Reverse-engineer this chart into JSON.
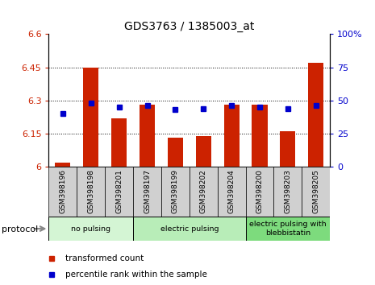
{
  "title": "GDS3763 / 1385003_at",
  "samples": [
    "GSM398196",
    "GSM398198",
    "GSM398201",
    "GSM398197",
    "GSM398199",
    "GSM398202",
    "GSM398204",
    "GSM398200",
    "GSM398203",
    "GSM398205"
  ],
  "red_values": [
    6.02,
    6.45,
    6.22,
    6.28,
    6.13,
    6.14,
    6.28,
    6.28,
    6.16,
    6.47
  ],
  "blue_values": [
    40,
    48,
    45,
    46,
    43,
    44,
    46,
    45,
    44,
    46
  ],
  "ylim_left": [
    6.0,
    6.6
  ],
  "ylim_right": [
    0,
    100
  ],
  "yticks_left": [
    6.0,
    6.15,
    6.3,
    6.45,
    6.6
  ],
  "yticks_right": [
    0,
    25,
    50,
    75,
    100
  ],
  "ytick_labels_left": [
    "6",
    "6.15",
    "6.3",
    "6.45",
    "6.6"
  ],
  "ytick_labels_right": [
    "0",
    "25",
    "50",
    "75",
    "100%"
  ],
  "groups": [
    {
      "label": "no pulsing",
      "start": 0,
      "end": 3,
      "color": "#d4f5d4"
    },
    {
      "label": "electric pulsing",
      "start": 3,
      "end": 7,
      "color": "#b8edb8"
    },
    {
      "label": "electric pulsing with\nblebbistatin",
      "start": 7,
      "end": 10,
      "color": "#7ddb7d"
    }
  ],
  "bar_color": "#cc2200",
  "blue_marker_color": "#0000cc",
  "bar_width": 0.55,
  "protocol_label": "protocol",
  "legend_red": "transformed count",
  "legend_blue": "percentile rank within the sample",
  "background_color": "#ffffff",
  "plot_bg_color": "#ffffff",
  "tick_label_color_left": "#cc2200",
  "tick_label_color_right": "#0000cc",
  "sample_box_color": "#d0d0d0",
  "grid_color": "black",
  "grid_linestyle": ":",
  "grid_linewidth": 0.7
}
